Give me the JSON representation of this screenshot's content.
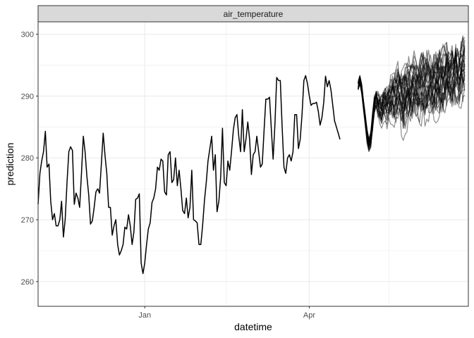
{
  "chart_data": {
    "type": "line",
    "facet_label": "air_temperature",
    "xlabel": "datetime",
    "ylabel": "prediction",
    "ylim": [
      256,
      302
    ],
    "xlim": [
      "2023-11-03",
      "2024-06-28"
    ],
    "x_ticks": [
      {
        "date": "2024-01-01",
        "label": "Jan"
      },
      {
        "date": "2024-04-01",
        "label": "Apr"
      }
    ],
    "x_minor_ticks": [
      "2023-11-01",
      "2024-02-15",
      "2024-05-15"
    ],
    "y_ticks": [
      260,
      270,
      280,
      290,
      300
    ],
    "y_minor_ticks": [
      265,
      275,
      285,
      295
    ],
    "grid": true,
    "legend": "none",
    "colors": {
      "observed": "#000000",
      "ensemble": "#000000",
      "strip_fill": "#d9d9d9",
      "grid": "#ebebeb"
    },
    "observed": {
      "start_date": "2023-11-03",
      "step_days": 1,
      "values": [
        272.5,
        277.5,
        279.5,
        281.0,
        284.3,
        278.5,
        279.0,
        273.0,
        270.0,
        271.0,
        269.0,
        269.0,
        270.0,
        273.0,
        267.2,
        270.0,
        276.0,
        281.0,
        281.8,
        281.2,
        272.5,
        274.3,
        273.5,
        272.0,
        277.5,
        283.5,
        281.0,
        277.0,
        274.0,
        269.3,
        269.8,
        272.0,
        274.5,
        275.0,
        274.3,
        279.0,
        284.0,
        280.5,
        277.5,
        272.0,
        272.0,
        267.5,
        269.0,
        270.0,
        266.0,
        264.3,
        265.0,
        266.0,
        268.8,
        268.5,
        270.8,
        269.0,
        266.0,
        268.0,
        273.3,
        273.5,
        274.2,
        263.0,
        261.3,
        263.0,
        266.0,
        268.5,
        269.5,
        272.8,
        273.5,
        275.0,
        278.5,
        278.0,
        279.8,
        279.5,
        274.5,
        274.0,
        280.5,
        281.0,
        276.0,
        276.5,
        280.0,
        275.5,
        278.0,
        275.0,
        271.5,
        271.0,
        273.5,
        270.3,
        272.0,
        278.0,
        270.0,
        269.8,
        269.5,
        266.0,
        266.0,
        269.0,
        273.0,
        276.0,
        279.5,
        281.5,
        283.5,
        278.0,
        280.5,
        271.3,
        273.0,
        277.0,
        284.8,
        276.0,
        275.5,
        279.5,
        278.0,
        281.0,
        284.5,
        286.5,
        287.0,
        283.5,
        281.0,
        287.8,
        281.0,
        283.0,
        285.8,
        283.0,
        277.3,
        280.5,
        281.0,
        283.5,
        281.0,
        278.5,
        279.0,
        284.5,
        289.5,
        289.5,
        289.8,
        284.8,
        279.8,
        285.5,
        293.0,
        292.5,
        292.5,
        285.0,
        278.5,
        277.5,
        280.0,
        280.5,
        279.5,
        281.0,
        287.0,
        287.0,
        281.5,
        283.0,
        287.0,
        292.5,
        293.3,
        292.0,
        290.0,
        288.5,
        288.8,
        288.8,
        289.0,
        287.5,
        285.3,
        286.5,
        289.0,
        293.2,
        291.5,
        292.5,
        291.0,
        288.5,
        286.0,
        285.0,
        284.0,
        283.0
      ]
    },
    "ensemble": {
      "start_date": "2024-04-28",
      "step_days": 1,
      "members": 31,
      "opacity": 0.45,
      "base": [
        291.5,
        292.5,
        291.0,
        288.5,
        286.0,
        283.5,
        282.0,
        283.0,
        286.0,
        288.5,
        289.5,
        288.5,
        288.0,
        287.5,
        288.5,
        289.0,
        288.5,
        289.0,
        289.5,
        290.0,
        289.5,
        290.0,
        291.0,
        290.5,
        289.5,
        289.0,
        290.0,
        290.5,
        290.8,
        290.5,
        291.0,
        291.5,
        291.0,
        290.5,
        291.0,
        291.5,
        291.5,
        291.0,
        291.5,
        292.0,
        291.5,
        291.0,
        291.5,
        292.0,
        292.5,
        292.0,
        292.0,
        292.5,
        293.0,
        293.5,
        293.0,
        292.5,
        293.0,
        293.5,
        294.0,
        293.0,
        293.5,
        294.0,
        294.5,
        294.5
      ],
      "start_spread": [
        -0.5,
        1.0
      ],
      "spread_range": [
        3.0,
        5.5
      ]
    }
  }
}
